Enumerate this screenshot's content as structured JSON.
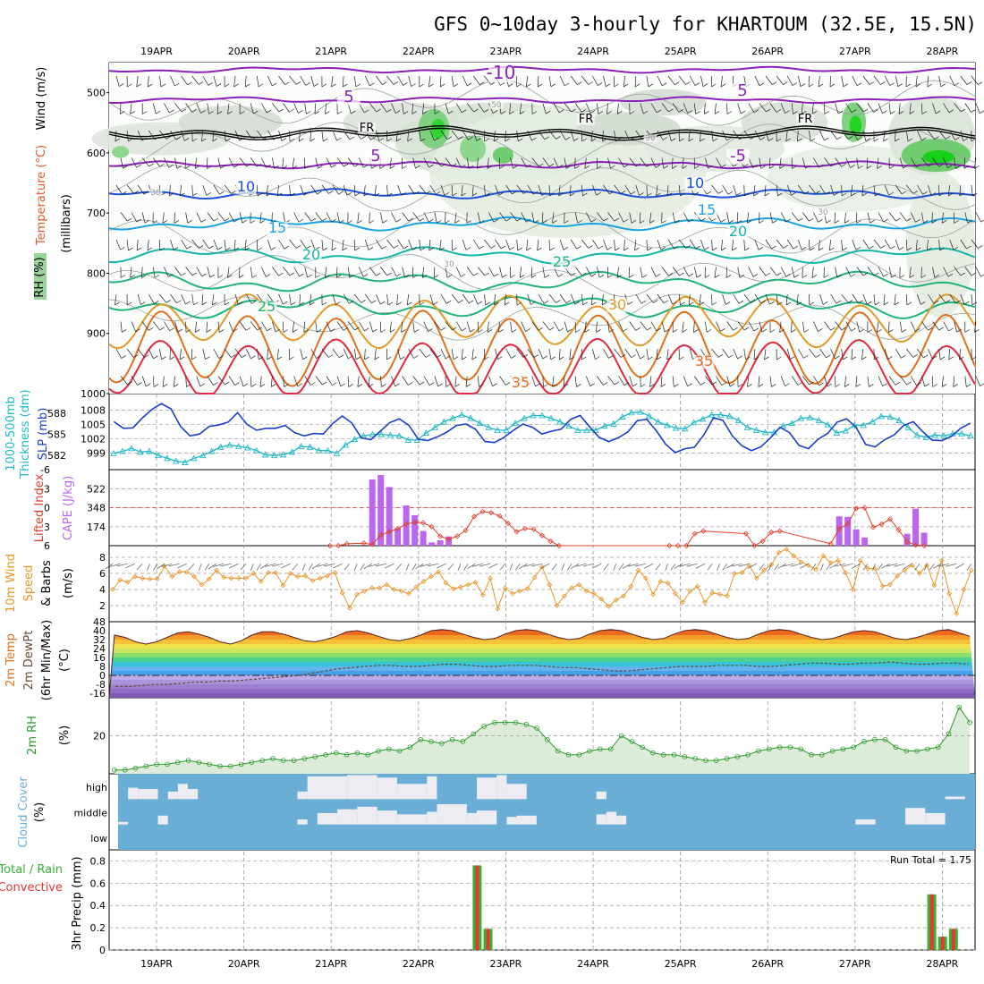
{
  "title": "GFS 0~10day 3-hourly for KHARTOUM (32.5E, 15.5N)",
  "dates": [
    "19APR",
    "20APR",
    "21APR",
    "22APR",
    "23APR",
    "24APR",
    "25APR",
    "26APR",
    "27APR",
    "28APR"
  ],
  "colors": {
    "grid": "#9a9a9a",
    "purple": "#8a20b8",
    "blue": "#1a4fd6",
    "lightblue": "#1aa3e0",
    "teal": "#14b5a6",
    "green": "#22b37a",
    "orange": "#e29a2a",
    "darkorange": "#e07020",
    "red": "#e02a40",
    "slp": "#1a3fcc",
    "thick": "#1fb8c8",
    "cape": "#bb66ee",
    "li": "#e0402a",
    "wind10": "#e8962a",
    "rh2m": "#2a9a2a",
    "rhfill": "#dcecd8",
    "cloud": "#6aaed6",
    "cloudpatch": "#ececf2",
    "rainTotal": "#35b335",
    "rainConv": "#e83535"
  },
  "chart_data": [
    {
      "panel": "upper-air",
      "type": "contour",
      "ylabel_parts": [
        "RH (%)",
        "Temperature (°C)",
        "Wind (m/s)",
        "(millibars)"
      ],
      "ylabel_units": "millibars",
      "y_ticks": [
        500,
        600,
        700,
        800,
        900,
        1000
      ],
      "ylim": [
        450,
        1000
      ],
      "contour_labels": {
        "purple": [
          "-10",
          "5",
          "5",
          "5",
          "-5"
        ],
        "fr": [
          "FR",
          "FR",
          "FR"
        ],
        "blue": [
          "10",
          "10"
        ],
        "lightblue": [
          "15",
          "15"
        ],
        "teal": [
          "20",
          "20"
        ],
        "green": [
          "25",
          "25"
        ],
        "orange": [
          "30"
        ],
        "red": [
          "35",
          "35"
        ],
        "gray": [
          "50",
          "30",
          "30",
          "30",
          "30"
        ]
      }
    },
    {
      "panel": "slp-thickness",
      "type": "line",
      "ylabel_parts": [
        "1000-500mb",
        "Thickness (dm)",
        "SLP (mb)"
      ],
      "thickness_ticks": [
        582,
        585,
        588
      ],
      "slp_ticks": [
        999,
        1002,
        1005,
        1008
      ],
      "series": [
        {
          "name": "SLP (mb)",
          "ylim": [
            997,
            1010
          ],
          "values": [
            1005.6,
            1004.2,
            1004.3,
            1006.4,
            1008.2,
            1009.4,
            1008.3,
            1004.6,
            1002.6,
            1003.0,
            1004.6,
            1004.9,
            1005.5,
            1007.5,
            1005.0,
            1003.8,
            1004.2,
            1004.2,
            1004.8,
            1003.3,
            1002.6,
            1003.1,
            1003.0,
            1005.2,
            1006.8,
            1005.3,
            1002.2,
            1001.8,
            1003.6,
            1005.4,
            1006.2,
            1004.8,
            1001.9,
            1001.6,
            1002.4,
            1003.4,
            1004.8,
            1005.1,
            1004.0,
            1001.4,
            1001.2,
            1002.3,
            1003.8,
            1005.1,
            1004.4,
            1003.0,
            1003.6,
            1004.0,
            1006.1,
            1006.9,
            1004.5,
            1002.3,
            1001.4,
            1002.2,
            1003.4,
            1005.8,
            1006.1,
            1003.7,
            1000.8,
            999.1,
            999.9,
            1000.2,
            1002.8,
            1006.4,
            1005.9,
            1002.6,
            1000.5,
            999.5,
            1000.3,
            1002.2,
            1004.4,
            1003.3,
            1000.6,
            999.9,
            1001.9,
            1003.1,
            1005.5,
            1006.2,
            1004.4,
            1000.8,
            1000.3,
            1001.8,
            1002.8,
            1004.8,
            1005.6,
            1003.5,
            1001.7,
            1001.6,
            1002.5,
            1004.2,
            1005.3
          ]
        },
        {
          "name": "Thickness (dm)",
          "ylim": [
            581,
            589.8
          ],
          "values": [
            582.3,
            582.6,
            583.0,
            582.5,
            582.6,
            582.0,
            581.6,
            581.2,
            581.0,
            581.6,
            582.0,
            582.6,
            583.2,
            583.5,
            583.3,
            583.1,
            582.7,
            582.1,
            582.0,
            582.1,
            582.5,
            583.3,
            583.2,
            582.7,
            582.7,
            582.3,
            583.5,
            584.3,
            584.8,
            585.0,
            585.0,
            584.9,
            584.8,
            584.2,
            584.2,
            585.2,
            586.0,
            586.8,
            587.3,
            587.8,
            587.3,
            586.6,
            586.0,
            585.6,
            585.6,
            586.6,
            587.3,
            587.7,
            587.7,
            587.3,
            586.8,
            586.2,
            585.6,
            585.6,
            585.6,
            586.2,
            586.5,
            587.5,
            588.1,
            588.2,
            587.6,
            586.8,
            586.3,
            585.9,
            585.8,
            586.7,
            587.2,
            587.8,
            587.8,
            587.6,
            587.0,
            586.0,
            585.6,
            585.3,
            585.3,
            586.2,
            586.6,
            587.3,
            587.4,
            587.0,
            586.4,
            585.2,
            585.5,
            586.3,
            586.3,
            586.8,
            587.6,
            587.5,
            587.0,
            586.0,
            584.9,
            584.6,
            584.9,
            584.8,
            585.1,
            585.1,
            584.8
          ]
        }
      ]
    },
    {
      "panel": "cape-li",
      "type": "bar+line",
      "ylabel_parts": [
        "Lifted Index",
        "CAPE (J/kg)"
      ],
      "li_ticks": [
        -6,
        -3,
        0,
        3,
        6
      ],
      "cape_ticks": [
        174,
        348,
        522
      ],
      "series": [
        {
          "name": "CAPE (J/kg)",
          "type": "bar",
          "ylim": [
            0,
            700
          ],
          "x_index": [
            31,
            32,
            33,
            34,
            35,
            36,
            37,
            38,
            39,
            40,
            86,
            87,
            88,
            89,
            94,
            95,
            96
          ],
          "values": [
            610,
            650,
            540,
            160,
            370,
            280,
            135,
            30,
            50,
            85,
            270,
            265,
            150,
            75,
            110,
            340,
            120
          ]
        },
        {
          "name": "Lifted Index",
          "type": "line",
          "ylim": [
            6,
            -6
          ],
          "x_index": [
            26,
            27,
            28,
            30,
            31,
            32,
            33,
            34,
            35,
            36,
            37,
            38,
            39,
            40,
            41,
            42,
            43,
            44,
            45,
            46,
            47,
            48,
            49,
            50,
            51,
            52,
            53,
            66,
            67,
            68,
            69,
            70,
            75,
            76,
            77,
            78,
            79,
            85,
            86,
            87,
            88,
            89,
            90,
            91,
            92,
            93,
            94,
            95,
            96
          ],
          "values": [
            6.0,
            6.0,
            5.7,
            5.6,
            5.8,
            4.3,
            3.8,
            3.3,
            2.6,
            2.3,
            2.4,
            3.0,
            4.5,
            5.0,
            4.5,
            3.6,
            1.4,
            0.6,
            0.8,
            1.3,
            2.5,
            3.8,
            3.3,
            3.4,
            4.4,
            5.3,
            6.0,
            6.0,
            6.0,
            6.0,
            4.1,
            3.7,
            4.1,
            6.0,
            5.3,
            3.9,
            3.7,
            5.7,
            3.3,
            2.6,
            0.1,
            0.0,
            3.1,
            2.6,
            1.8,
            3.5,
            5.4,
            5.9,
            6.0
          ]
        }
      ]
    },
    {
      "panel": "wind-10m",
      "type": "line",
      "ylabel_parts": [
        "10m Wind",
        "Speed",
        "& Barbs",
        "(m/s)"
      ],
      "y_ticks": [
        2,
        4,
        6,
        8
      ],
      "series": [
        {
          "name": "10m Wind Speed (m/s)",
          "ylim": [
            0,
            9
          ],
          "values": [
            4.0,
            5.2,
            4.9,
            5.6,
            5.4,
            5.3,
            5.3,
            6.9,
            5.6,
            6.2,
            6.2,
            5.6,
            4.6,
            5.3,
            6.4,
            5.5,
            5.4,
            5.4,
            5.4,
            6.0,
            5.0,
            6.1,
            6.1,
            4.5,
            6.0,
            5.6,
            5.7,
            5.1,
            5.4,
            5.7,
            6.1,
            3.6,
            1.7,
            3.4,
            3.8,
            4.2,
            4.2,
            4.6,
            4.0,
            3.8,
            3.5,
            4.3,
            5.0,
            5.6,
            6.2,
            4.8,
            4.1,
            4.3,
            4.6,
            4.9,
            3.3,
            5.4,
            1.6,
            4.2,
            3.5,
            3.8,
            4.1,
            5.5,
            6.8,
            4.6,
            2.0,
            3.2,
            4.2,
            4.6,
            3.8,
            3.5,
            2.8,
            1.9,
            2.7,
            3.2,
            4.4,
            6.4,
            5.4,
            3.4,
            5.0,
            4.8,
            3.5,
            2.4,
            3.8,
            4.4,
            2.4,
            3.6,
            3.4,
            3.2,
            6.0,
            6.1,
            7.0,
            5.4,
            6.4,
            7.1,
            8.6,
            9.0,
            8.2,
            7.4,
            7.0,
            6.5,
            8.2,
            7.3,
            7.6,
            6.1,
            4.0,
            7.6,
            6.6,
            6.6,
            4.4,
            4.6,
            5.7,
            6.4,
            7.0,
            6.0,
            7.0,
            4.5,
            7.6,
            3.5,
            1.0,
            4.0,
            6.4
          ]
        }
      ]
    },
    {
      "panel": "temp-2m",
      "type": "area",
      "ylabel_parts": [
        "2m Temp",
        "2m DewPt",
        "(6hr Min/Max)",
        "(°C)"
      ],
      "y_ticks": [
        -16,
        -8,
        0,
        8,
        16,
        24,
        32,
        40,
        48
      ],
      "series": [
        {
          "name": "2m Temp (°C)",
          "ylim": [
            -20,
            48
          ],
          "values": [
            36,
            34,
            30,
            28,
            30,
            34,
            38,
            39,
            37,
            34,
            30,
            28,
            31,
            36,
            39,
            39,
            37,
            34,
            31,
            30,
            32,
            35,
            39,
            40,
            38,
            35,
            32,
            31,
            33,
            36,
            40,
            41,
            40,
            37,
            34,
            32,
            33,
            37,
            40,
            41,
            40,
            37,
            34,
            32,
            33,
            37,
            40,
            41,
            40,
            37,
            34,
            32,
            33,
            37,
            40,
            41,
            40,
            37,
            34,
            32,
            33,
            37,
            40,
            41,
            40,
            37,
            34,
            32,
            33,
            36,
            39,
            40,
            39,
            36,
            33,
            32,
            34,
            37,
            40,
            41,
            38,
            35
          ]
        },
        {
          "name": "2m DewPt (°C)",
          "ylim": [
            -20,
            48
          ],
          "values": [
            -10,
            -10,
            -9,
            -8,
            -8,
            -7,
            -6,
            -6,
            -5,
            -5,
            -4,
            -3,
            -2,
            -1,
            0,
            2,
            4,
            6,
            7,
            8,
            9,
            9,
            8,
            8,
            9,
            10,
            10,
            9,
            8,
            8,
            9,
            9,
            9,
            8,
            7,
            7,
            6,
            5,
            4,
            4,
            5,
            6,
            7,
            8,
            8,
            8,
            9,
            9,
            9,
            8,
            8,
            9,
            10,
            11,
            11,
            10,
            10,
            11,
            11,
            12,
            11,
            10,
            10,
            11,
            11,
            10
          ]
        }
      ]
    },
    {
      "panel": "rh-2m",
      "type": "area",
      "ylabel_parts": [
        "2m RH",
        "(%)"
      ],
      "y_ticks": [
        20
      ],
      "series": [
        {
          "name": "2m RH (%)",
          "ylim": [
            0,
            40
          ],
          "values": [
            2,
            2,
            3,
            4,
            5,
            5,
            6,
            7,
            6,
            5,
            4,
            4,
            5,
            6,
            7,
            8,
            7,
            7,
            8,
            9,
            10,
            11,
            10,
            11,
            10,
            12,
            13,
            12,
            14,
            18,
            17,
            16,
            18,
            17,
            21,
            25,
            27,
            27,
            27,
            26,
            24,
            18,
            12,
            10,
            10,
            12,
            13,
            13,
            20,
            17,
            14,
            11,
            10,
            10,
            9,
            8,
            7,
            7,
            8,
            9,
            10,
            12,
            13,
            14,
            14,
            13,
            10,
            10,
            12,
            13,
            14,
            17,
            18,
            18,
            14,
            12,
            12,
            13,
            14,
            21,
            35,
            27
          ]
        }
      ]
    },
    {
      "panel": "cloud-cover",
      "type": "heatmap",
      "ylabel_parts": [
        "Cloud Cover",
        "(%)"
      ],
      "levels": [
        "high",
        "middle",
        "low"
      ],
      "high_segments": [
        [
          1,
          2,
          45
        ],
        [
          2,
          4,
          40
        ],
        [
          5,
          6,
          30
        ],
        [
          6,
          7,
          60
        ],
        [
          7,
          8,
          40
        ],
        [
          18,
          19,
          30
        ],
        [
          19,
          23,
          90
        ],
        [
          23,
          26,
          95
        ],
        [
          26,
          28,
          85
        ],
        [
          28,
          31,
          60
        ],
        [
          31,
          32,
          90
        ],
        [
          36,
          38,
          85
        ],
        [
          38,
          39,
          95
        ],
        [
          39,
          41,
          60
        ],
        [
          48,
          49,
          30
        ],
        [
          83,
          85,
          10
        ]
      ],
      "middle_segments": [
        [
          0,
          1,
          10
        ],
        [
          4,
          5,
          35
        ],
        [
          18,
          19,
          20
        ],
        [
          20,
          22,
          45
        ],
        [
          22,
          24,
          60
        ],
        [
          24,
          26,
          70
        ],
        [
          26,
          28,
          55
        ],
        [
          28,
          31,
          40
        ],
        [
          31,
          32,
          50
        ],
        [
          32,
          35,
          80
        ],
        [
          35,
          36,
          45
        ],
        [
          36,
          38,
          55
        ],
        [
          39,
          40,
          30
        ],
        [
          40,
          42,
          35
        ],
        [
          48,
          49,
          40
        ],
        [
          49,
          50,
          50
        ],
        [
          50,
          51,
          35
        ],
        [
          74,
          76,
          20
        ],
        [
          79,
          81,
          65
        ],
        [
          81,
          83,
          45
        ]
      ],
      "low_segments": []
    },
    {
      "panel": "precip-3hr",
      "type": "bar",
      "ylabel_parts": [
        "Total / Rain",
        "Convective",
        "3hr Precip (mm)"
      ],
      "y_ticks": [
        0,
        0.2,
        0.4,
        0.6,
        0.8
      ],
      "ylim": [
        0,
        0.9
      ],
      "run_total_label": "Run Total = 1.75",
      "x_index": [
        34,
        35,
        76,
        77,
        78
      ],
      "total": [
        0.76,
        0.19,
        0.5,
        0.12,
        0.19
      ],
      "convective": [
        0.76,
        0.19,
        0.5,
        0.12,
        0.19
      ]
    }
  ]
}
